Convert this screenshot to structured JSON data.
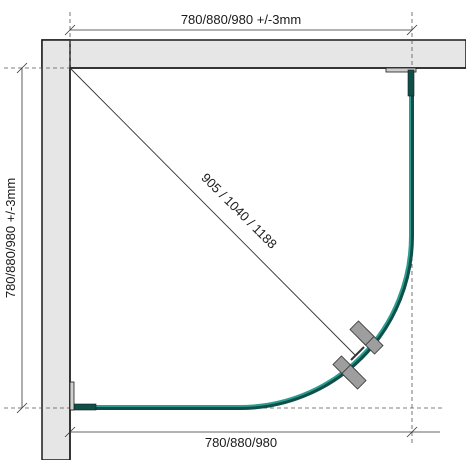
{
  "dimensions": {
    "top_width": "780/880/980 +/-3mm",
    "left_height": "780/880/980 +/-3mm",
    "diagonal": "905 / 1040 / 1188",
    "bottom_width": "780/880/980"
  },
  "colors": {
    "wall_fill": "#e6e6e6",
    "wall_stroke": "#1a1a1a",
    "glass": "#2a9d8f",
    "glass_edge": "#0f4f4a",
    "hinge": "#9e9e9e",
    "hinge_stroke": "#333333",
    "dimension_line": "#333333",
    "guide_line": "#555555"
  }
}
